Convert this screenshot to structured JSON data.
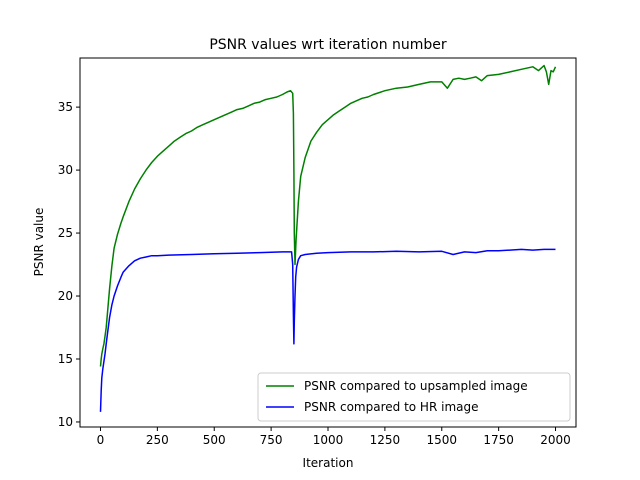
{
  "chart_data": {
    "type": "line",
    "title": "PSNR values wrt iteration number",
    "xlabel": "Iteration",
    "ylabel": "PSNR value",
    "xlim": [
      -90,
      2090
    ],
    "ylim": [
      9.6,
      38.9
    ],
    "xticks": [
      0,
      250,
      500,
      750,
      1000,
      1250,
      1500,
      1750,
      2000
    ],
    "yticks": [
      10,
      15,
      20,
      25,
      30,
      35
    ],
    "grid": false,
    "legend_position": "lower-right",
    "series": [
      {
        "name": "PSNR compared to upsampled image",
        "color": "#008000",
        "x": [
          0,
          3,
          6,
          10,
          15,
          20,
          25,
          30,
          40,
          50,
          60,
          75,
          90,
          100,
          125,
          150,
          175,
          200,
          225,
          250,
          275,
          300,
          325,
          350,
          375,
          400,
          425,
          450,
          475,
          500,
          525,
          550,
          575,
          600,
          625,
          650,
          675,
          700,
          725,
          750,
          775,
          800,
          820,
          835,
          840,
          845,
          848,
          850,
          852,
          855,
          860,
          870,
          880,
          900,
          925,
          950,
          975,
          1000,
          1025,
          1050,
          1075,
          1100,
          1125,
          1150,
          1175,
          1200,
          1250,
          1300,
          1350,
          1400,
          1450,
          1500,
          1525,
          1550,
          1575,
          1600,
          1625,
          1650,
          1675,
          1700,
          1750,
          1800,
          1850,
          1900,
          1925,
          1950,
          1960,
          1970,
          1980,
          1990,
          2000
        ],
        "y": [
          14.4,
          15.0,
          15.4,
          15.8,
          16.2,
          16.8,
          17.5,
          18.5,
          20.6,
          22.4,
          23.8,
          24.9,
          25.8,
          26.3,
          27.5,
          28.5,
          29.3,
          30.0,
          30.6,
          31.1,
          31.5,
          31.9,
          32.3,
          32.6,
          32.9,
          33.1,
          33.4,
          33.6,
          33.8,
          34.0,
          34.2,
          34.4,
          34.6,
          34.8,
          34.9,
          35.1,
          35.3,
          35.4,
          35.6,
          35.7,
          35.8,
          36.0,
          36.2,
          36.3,
          36.2,
          36.1,
          34.5,
          30.0,
          25.0,
          22.5,
          24.5,
          27.5,
          29.5,
          31.0,
          32.3,
          33.0,
          33.6,
          34.0,
          34.4,
          34.7,
          35.0,
          35.3,
          35.5,
          35.7,
          35.8,
          36.0,
          36.3,
          36.5,
          36.6,
          36.8,
          37.0,
          37.0,
          36.5,
          37.2,
          37.3,
          37.2,
          37.3,
          37.4,
          37.1,
          37.5,
          37.6,
          37.8,
          38.0,
          38.2,
          37.9,
          38.3,
          37.8,
          36.8,
          37.9,
          37.8,
          38.2
        ]
      },
      {
        "name": "PSNR compared to HR image",
        "color": "#0000ff",
        "x": [
          0,
          3,
          6,
          10,
          15,
          20,
          25,
          30,
          40,
          50,
          60,
          75,
          90,
          100,
          125,
          150,
          175,
          200,
          225,
          250,
          300,
          400,
          500,
          600,
          700,
          800,
          840,
          845,
          848,
          850,
          852,
          855,
          858,
          862,
          870,
          880,
          900,
          950,
          1000,
          1100,
          1200,
          1300,
          1400,
          1500,
          1550,
          1600,
          1650,
          1700,
          1750,
          1800,
          1850,
          1900,
          1950,
          2000
        ],
        "y": [
          10.8,
          12.5,
          13.5,
          14.2,
          14.8,
          15.4,
          16.2,
          16.9,
          18.3,
          19.3,
          20.0,
          20.8,
          21.5,
          21.9,
          22.4,
          22.8,
          23.0,
          23.1,
          23.2,
          23.2,
          23.25,
          23.3,
          23.35,
          23.4,
          23.45,
          23.5,
          23.5,
          22.5,
          18.5,
          16.2,
          18.0,
          20.0,
          21.5,
          22.3,
          22.9,
          23.2,
          23.3,
          23.4,
          23.45,
          23.5,
          23.5,
          23.55,
          23.5,
          23.55,
          23.3,
          23.5,
          23.45,
          23.6,
          23.6,
          23.65,
          23.7,
          23.65,
          23.7,
          23.7
        ]
      }
    ]
  }
}
